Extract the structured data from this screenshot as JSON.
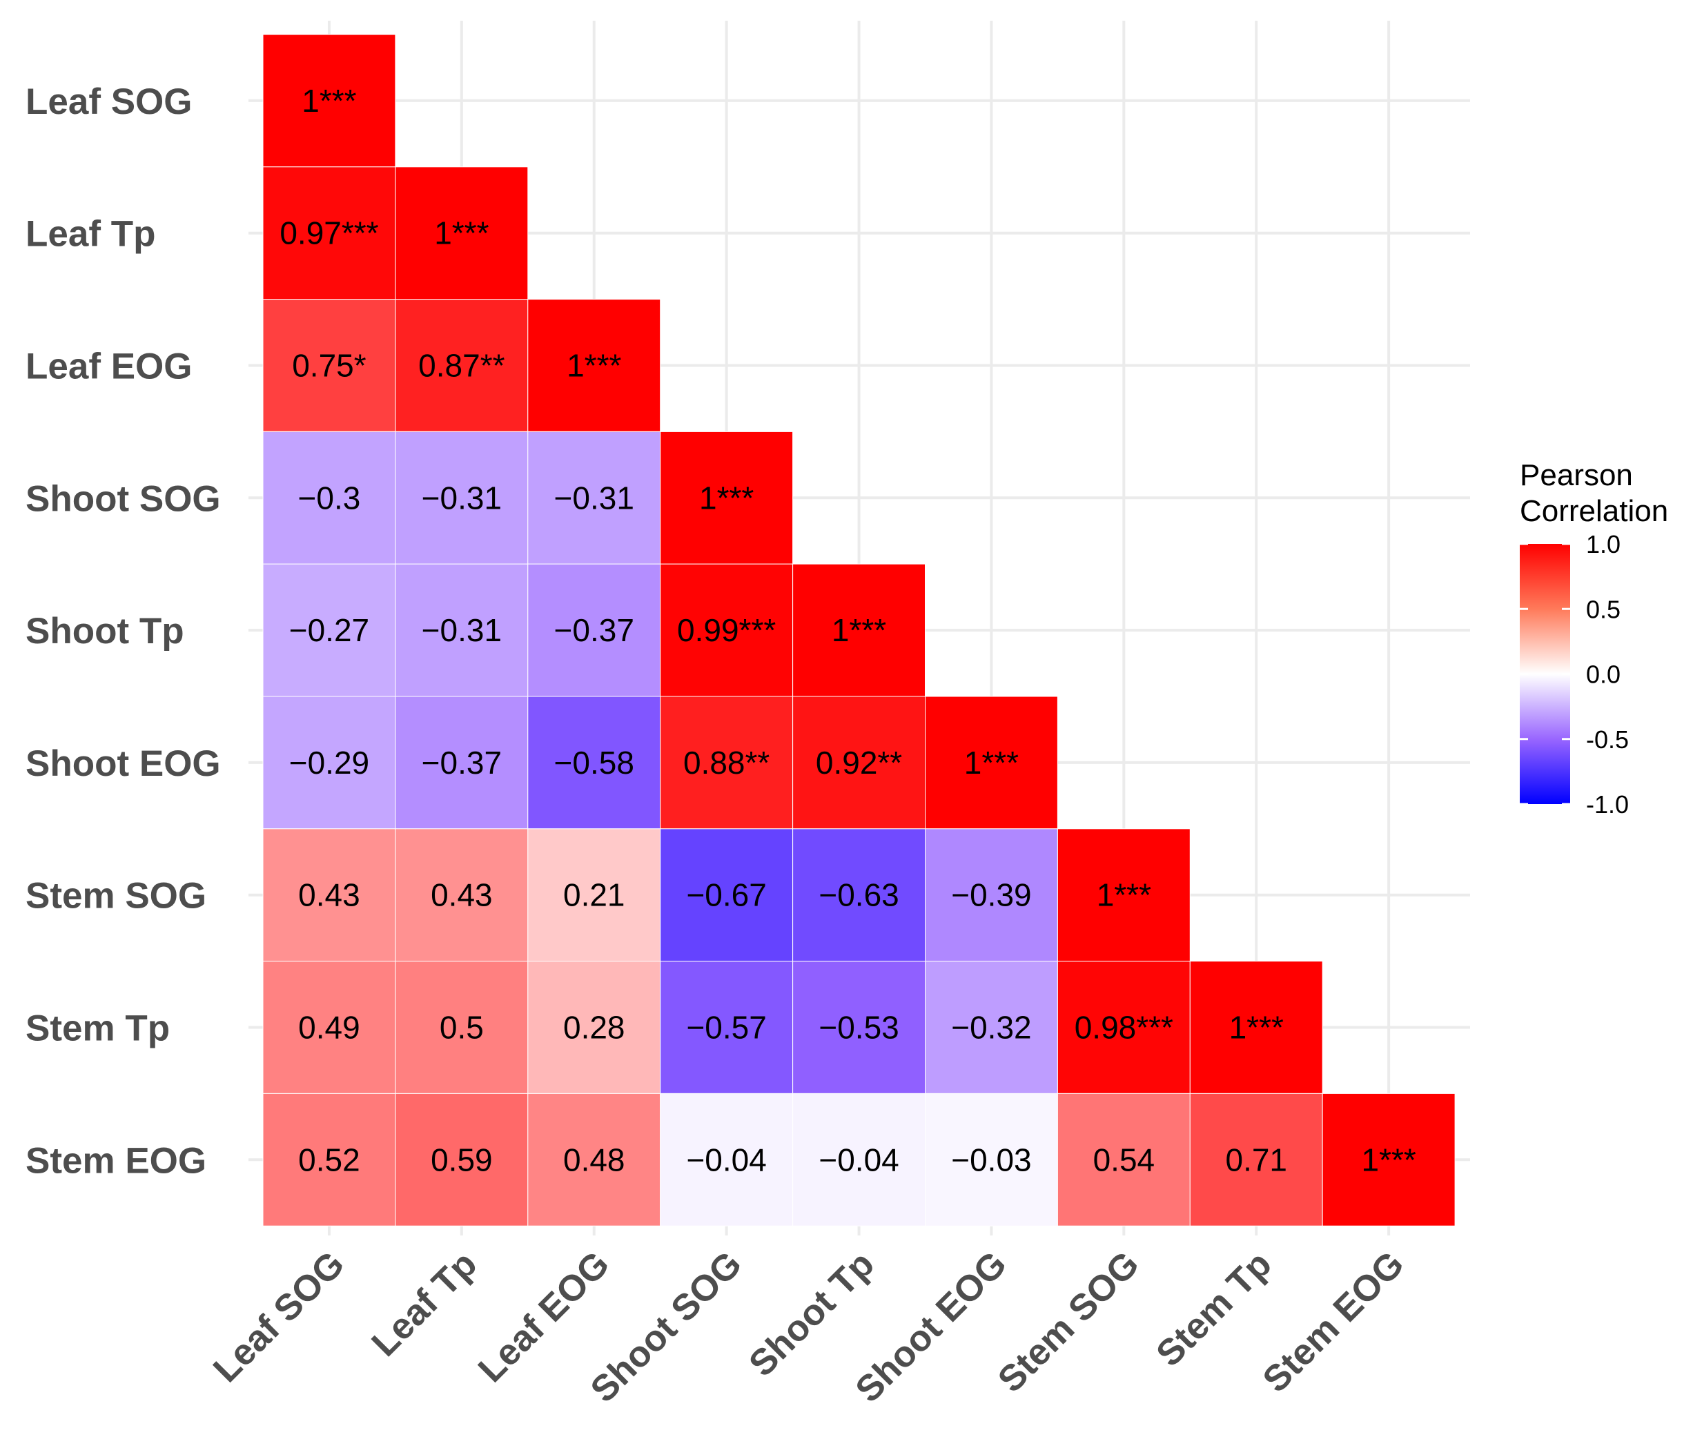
{
  "chart_data": {
    "type": "heatmap",
    "title": "",
    "xlabel": "",
    "ylabel": "",
    "variables": [
      "Leaf SOG",
      "Leaf Tp",
      "Leaf EOG",
      "Shoot SOG",
      "Shoot Tp",
      "Shoot EOG",
      "Stem SOG",
      "Stem Tp",
      "Stem EOG"
    ],
    "matrix_lower": [
      [
        1
      ],
      [
        0.97,
        1
      ],
      [
        0.75,
        0.87,
        1
      ],
      [
        -0.3,
        -0.31,
        -0.31,
        1
      ],
      [
        -0.27,
        -0.31,
        -0.37,
        0.99,
        1
      ],
      [
        -0.29,
        -0.37,
        -0.58,
        0.88,
        0.92,
        1
      ],
      [
        0.43,
        0.43,
        0.21,
        -0.67,
        -0.63,
        -0.39,
        1
      ],
      [
        0.49,
        0.5,
        0.28,
        -0.57,
        -0.53,
        -0.32,
        0.98,
        1
      ],
      [
        0.52,
        0.59,
        0.48,
        -0.04,
        -0.04,
        -0.03,
        0.54,
        0.71,
        1
      ]
    ],
    "labels_lower": [
      [
        "1***"
      ],
      [
        "0.97***",
        "1***"
      ],
      [
        "0.75*",
        "0.87**",
        "1***"
      ],
      [
        "−0.3",
        "−0.31",
        "−0.31",
        "1***"
      ],
      [
        "−0.27",
        "−0.31",
        "−0.37",
        "0.99***",
        "1***"
      ],
      [
        "−0.29",
        "−0.37",
        "−0.58",
        "0.88**",
        "0.92**",
        "1***"
      ],
      [
        "0.43",
        "0.43",
        "0.21",
        "−0.67",
        "−0.63",
        "−0.39",
        "1***"
      ],
      [
        "0.49",
        "0.5",
        "0.28",
        "−0.57",
        "−0.53",
        "−0.32",
        "0.98***",
        "1***"
      ],
      [
        "0.52",
        "0.59",
        "0.48",
        "−0.04",
        "−0.04",
        "−0.03",
        "0.54",
        "0.71",
        "1***"
      ]
    ],
    "legend": {
      "title_line1": "Pearson",
      "title_line2": "Correlation",
      "ticks": [
        "1.0",
        "0.5",
        "0.0",
        "-0.5",
        "-1.0"
      ],
      "tick_values": [
        1.0,
        0.5,
        0.0,
        -0.5,
        -1.0
      ],
      "range": [
        -1,
        1
      ],
      "position": "right"
    },
    "colors": {
      "low": "#0000FF",
      "mid_low": "#9966FF",
      "mid": "#FFFFFF",
      "high": "#FF0000",
      "grid": "#ebebeb",
      "axis_text": "#4d4d4d"
    },
    "grid": true
  }
}
